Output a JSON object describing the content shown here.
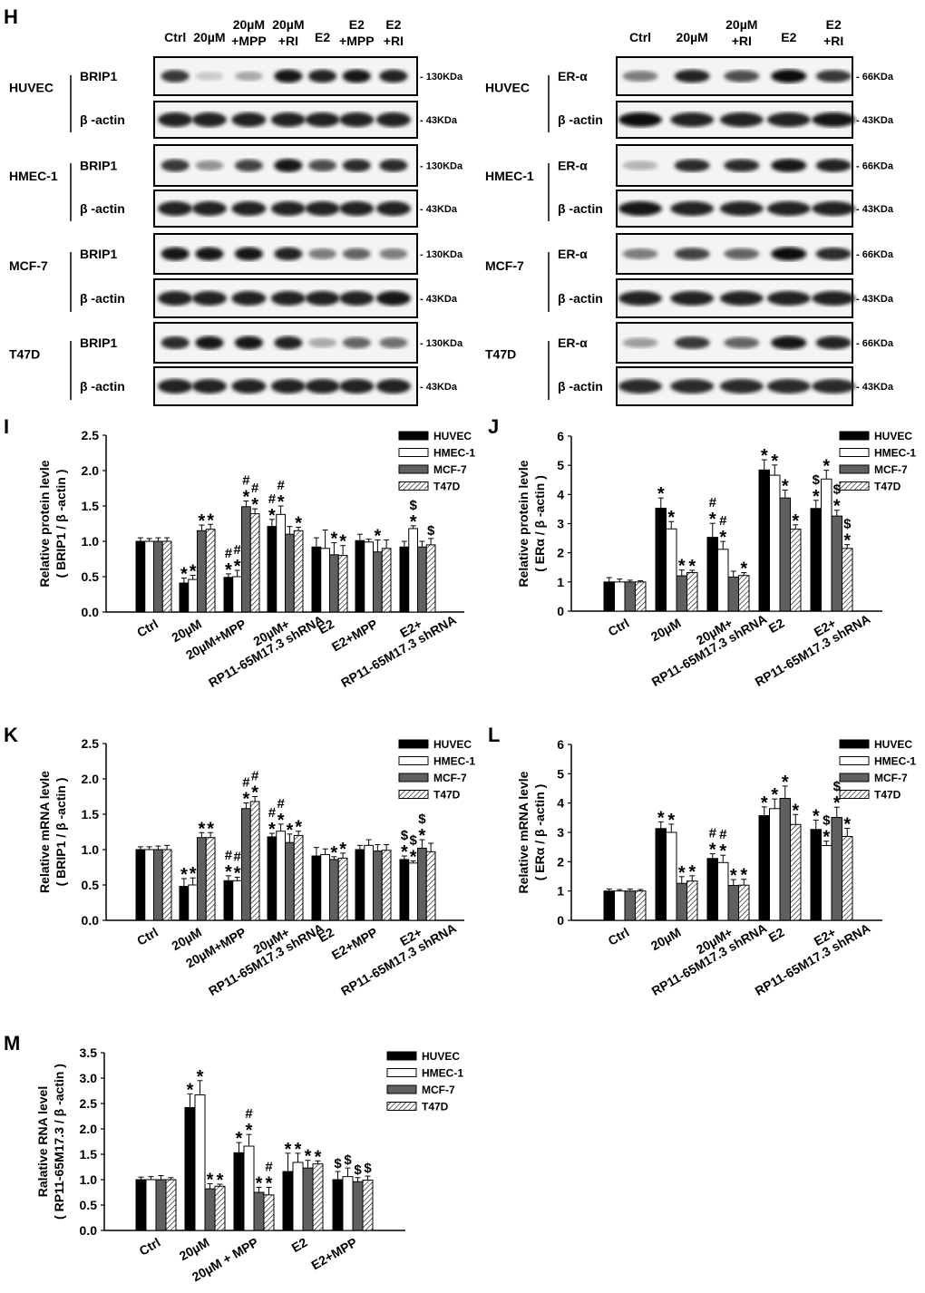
{
  "panel_letters": {
    "blots": "H",
    "i": "I",
    "j": "J",
    "k": "K",
    "l": "L",
    "m": "M"
  },
  "blots": {
    "left": {
      "lanes": [
        [
          "Ctrl"
        ],
        [
          "20µM"
        ],
        [
          "20µM",
          "+MPP"
        ],
        [
          "20µM",
          "+RI"
        ],
        [
          "E2"
        ],
        [
          "E2",
          "+MPP"
        ],
        [
          "E2",
          "+RI"
        ]
      ],
      "target": "BRIP1",
      "target_marker": "- 130KDa",
      "loading": "β -actin",
      "loading_marker": "- 43KDa",
      "cell_lines": [
        {
          "name": "HUVEC",
          "target_intensity": [
            0.8,
            0.15,
            0.3,
            0.95,
            0.9,
            0.95,
            0.9
          ],
          "loading_intensity": [
            0.9,
            0.9,
            0.9,
            0.9,
            0.9,
            0.9,
            0.9
          ]
        },
        {
          "name": "HMEC-1",
          "target_intensity": [
            0.8,
            0.4,
            0.75,
            0.95,
            0.7,
            0.85,
            0.85
          ],
          "loading_intensity": [
            0.9,
            0.9,
            0.9,
            0.9,
            0.9,
            0.9,
            0.9
          ]
        },
        {
          "name": "MCF-7",
          "target_intensity": [
            0.95,
            0.95,
            0.95,
            0.9,
            0.5,
            0.6,
            0.5
          ],
          "loading_intensity": [
            0.9,
            0.9,
            0.9,
            0.9,
            0.9,
            0.9,
            0.95
          ]
        },
        {
          "name": "T47D",
          "target_intensity": [
            0.85,
            0.95,
            0.95,
            0.9,
            0.3,
            0.6,
            0.55
          ],
          "loading_intensity": [
            0.9,
            0.9,
            0.9,
            0.9,
            0.9,
            0.9,
            0.9
          ]
        }
      ]
    },
    "right": {
      "lanes": [
        [
          "Ctrl"
        ],
        [
          "20µM"
        ],
        [
          "20µM",
          "+RI"
        ],
        [
          "E2"
        ],
        [
          "E2",
          "+RI"
        ]
      ],
      "target": "ER-α",
      "target_marker": "- 66KDa",
      "loading": "β -actin",
      "loading_marker": "- 43KDa",
      "cell_lines": [
        {
          "name": "HUVEC",
          "target_intensity": [
            0.5,
            0.9,
            0.7,
            1.0,
            0.8
          ],
          "loading_intensity": [
            1.0,
            0.9,
            0.9,
            0.9,
            0.95
          ]
        },
        {
          "name": "HMEC-1",
          "target_intensity": [
            0.25,
            0.85,
            0.85,
            0.95,
            0.9
          ],
          "loading_intensity": [
            0.95,
            0.9,
            0.9,
            0.9,
            0.9
          ]
        },
        {
          "name": "MCF-7",
          "target_intensity": [
            0.5,
            0.75,
            0.6,
            1.0,
            0.85
          ],
          "loading_intensity": [
            0.9,
            0.9,
            0.9,
            0.9,
            0.9
          ]
        },
        {
          "name": "T47D",
          "target_intensity": [
            0.35,
            0.8,
            0.6,
            0.95,
            0.9
          ],
          "loading_intensity": [
            0.85,
            0.85,
            0.85,
            0.85,
            0.85
          ]
        }
      ]
    }
  },
  "series_style": {
    "HUVEC": "#000000",
    "HMEC-1": "#ffffff",
    "MCF-7": "#606060",
    "T47D": "hatched"
  },
  "chart_data": [
    {
      "id": "I",
      "type": "bar",
      "ylabel": [
        "Relative protein levle",
        "( BRIP1 / β -actin )"
      ],
      "ylim": [
        0,
        2.5
      ],
      "yticks": [
        "0.0",
        "0.5",
        "1.0",
        "1.5",
        "2.0",
        "2.5"
      ],
      "legend": "top-right",
      "grid": false,
      "categories": [
        [
          "Ctrl"
        ],
        [
          "20µM"
        ],
        [
          "20µM+MPP"
        ],
        [
          "20µM+",
          "RP11-65M17.3 shRNA"
        ],
        [
          "E2"
        ],
        [
          "E2+MPP"
        ],
        [
          "E2+",
          "RP11-65M17.3 shRNA"
        ]
      ],
      "series": [
        {
          "name": "HUVEC",
          "values": [
            1.0,
            0.41,
            0.49,
            1.21,
            0.92,
            1.01,
            0.92
          ],
          "errors": [
            0.05,
            0.07,
            0.05,
            0.1,
            0.13,
            0.09,
            0.08
          ],
          "annotations": [
            "",
            "*",
            "#*",
            "#*",
            "",
            "",
            ""
          ]
        },
        {
          "name": "HMEC-1",
          "values": [
            1.0,
            0.46,
            0.5,
            1.38,
            0.9,
            0.99,
            1.18
          ],
          "errors": [
            0.04,
            0.06,
            0.09,
            0.12,
            0.26,
            0.04,
            0.04
          ],
          "annotations": [
            "",
            "*",
            "#*",
            "#*",
            "",
            "",
            "$*"
          ]
        },
        {
          "name": "MCF-7",
          "values": [
            1.0,
            1.15,
            1.49,
            1.1,
            0.81,
            0.85,
            0.92
          ],
          "errors": [
            0.05,
            0.08,
            0.08,
            0.11,
            0.17,
            0.17,
            0.08
          ],
          "annotations": [
            "",
            "*",
            "#*",
            "",
            "*",
            "*",
            ""
          ]
        },
        {
          "name": "T47D",
          "values": [
            1.0,
            1.17,
            1.39,
            1.15,
            0.8,
            0.9,
            0.95
          ],
          "errors": [
            0.05,
            0.07,
            0.07,
            0.05,
            0.14,
            0.12,
            0.09
          ],
          "annotations": [
            "",
            "*",
            "#*",
            "*",
            "*",
            "",
            "$"
          ]
        }
      ]
    },
    {
      "id": "J",
      "type": "bar",
      "ylabel": [
        "Relative protein levle",
        "( ERα  / β -actin )"
      ],
      "ylim": [
        0,
        6
      ],
      "yticks": [
        "0",
        "1",
        "2",
        "3",
        "4",
        "5",
        "6"
      ],
      "legend": "top-right",
      "grid": false,
      "categories": [
        [
          "Ctrl"
        ],
        [
          "20µM"
        ],
        [
          "20µM+",
          "RP11-65M17.3 shRNA"
        ],
        [
          "E2"
        ],
        [
          "E2+",
          "RP11-65M17.3 shRNA"
        ]
      ],
      "series": [
        {
          "name": "HUVEC",
          "values": [
            1.0,
            3.53,
            2.53,
            4.84,
            3.52
          ],
          "errors": [
            0.15,
            0.35,
            0.48,
            0.35,
            0.28
          ],
          "annotations": [
            "",
            "*",
            "#*",
            "*",
            "$*"
          ]
        },
        {
          "name": "HMEC-1",
          "values": [
            1.0,
            2.82,
            2.12,
            4.66,
            4.53
          ],
          "errors": [
            0.1,
            0.25,
            0.27,
            0.35,
            0.3
          ],
          "annotations": [
            "",
            "*",
            "#*",
            "*",
            "*"
          ]
        },
        {
          "name": "MCF-7",
          "values": [
            1.0,
            1.21,
            1.17,
            3.88,
            3.26
          ],
          "errors": [
            0.06,
            0.2,
            0.2,
            0.27,
            0.2
          ],
          "annotations": [
            "",
            "*",
            "",
            "*",
            "$*"
          ]
        },
        {
          "name": "T47D",
          "values": [
            1.0,
            1.32,
            1.22,
            2.81,
            2.15
          ],
          "errors": [
            0.04,
            0.08,
            0.1,
            0.15,
            0.13
          ],
          "annotations": [
            "",
            "*",
            "*",
            "*",
            "$*"
          ]
        }
      ]
    },
    {
      "id": "K",
      "type": "bar",
      "ylabel": [
        "Relative mRNA levle",
        "( BRIP1 / β -actin )"
      ],
      "ylim": [
        0,
        2.5
      ],
      "yticks": [
        "0.0",
        "0.5",
        "1.0",
        "1.5",
        "2.0",
        "2.5"
      ],
      "legend": "top-right",
      "grid": false,
      "categories": [
        [
          "Ctrl"
        ],
        [
          "20µM"
        ],
        [
          "20µM+MPP"
        ],
        [
          "20µM+",
          "RP11-65M17.3 shRNA"
        ],
        [
          "E2"
        ],
        [
          "E2+MPP"
        ],
        [
          "E2+",
          "RP11-65M17.3 shRNA"
        ]
      ],
      "series": [
        {
          "name": "HUVEC",
          "values": [
            1.0,
            0.48,
            0.56,
            1.18,
            0.91,
            1.0,
            0.86
          ],
          "errors": [
            0.04,
            0.11,
            0.07,
            0.05,
            0.12,
            0.06,
            0.05
          ],
          "annotations": [
            "",
            "*",
            "#*",
            "#*",
            "",
            "",
            "$*"
          ]
        },
        {
          "name": "HMEC-1",
          "values": [
            1.0,
            0.5,
            0.56,
            1.26,
            0.93,
            1.06,
            0.81
          ],
          "errors": [
            0.04,
            0.1,
            0.05,
            0.1,
            0.08,
            0.08,
            0.03
          ],
          "annotations": [
            "",
            "*",
            "#*",
            "#*",
            "",
            "",
            "$*"
          ]
        },
        {
          "name": "MCF-7",
          "values": [
            1.0,
            1.17,
            1.58,
            1.1,
            0.86,
            0.98,
            1.02
          ],
          "errors": [
            0.05,
            0.07,
            0.08,
            0.12,
            0.04,
            0.09,
            0.12
          ],
          "annotations": [
            "",
            "*",
            "#*",
            "*",
            "*",
            "",
            "$*"
          ]
        },
        {
          "name": "T47D",
          "values": [
            1.0,
            1.17,
            1.68,
            1.2,
            0.88,
            0.99,
            0.97
          ],
          "errors": [
            0.06,
            0.07,
            0.07,
            0.06,
            0.07,
            0.08,
            0.12
          ],
          "annotations": [
            "",
            "*",
            "#*",
            "*",
            "*",
            "",
            ""
          ]
        }
      ]
    },
    {
      "id": "L",
      "type": "bar",
      "ylabel": [
        "Relative mRNA levle",
        "( ERα / β -actin )"
      ],
      "ylim": [
        0,
        6
      ],
      "yticks": [
        "0",
        "1",
        "2",
        "3",
        "4",
        "5",
        "6"
      ],
      "legend": "top-right",
      "grid": false,
      "categories": [
        [
          "Ctrl"
        ],
        [
          "20µM"
        ],
        [
          "20µM+",
          "RP11-65M17.3 shRNA"
        ],
        [
          "E2"
        ],
        [
          "E2+",
          "RP11-65M17.3 shRNA"
        ]
      ],
      "series": [
        {
          "name": "HUVEC",
          "values": [
            1.0,
            3.13,
            2.11,
            3.57,
            3.1
          ],
          "errors": [
            0.07,
            0.23,
            0.16,
            0.3,
            0.32
          ],
          "annotations": [
            "",
            "*",
            "#*",
            "*",
            "*"
          ]
        },
        {
          "name": "HMEC-1",
          "values": [
            1.0,
            3.0,
            1.97,
            3.81,
            2.55
          ],
          "errors": [
            0.05,
            0.28,
            0.25,
            0.33,
            0.15
          ],
          "annotations": [
            "",
            "*",
            "#*",
            "*",
            "$*"
          ]
        },
        {
          "name": "MCF-7",
          "values": [
            1.0,
            1.26,
            1.19,
            4.16,
            3.51
          ],
          "errors": [
            0.07,
            0.23,
            0.2,
            0.42,
            0.35
          ],
          "annotations": [
            "",
            "*",
            "*",
            "*",
            "$*"
          ]
        },
        {
          "name": "T47D",
          "values": [
            1.0,
            1.34,
            1.2,
            3.27,
            2.86
          ],
          "errors": [
            0.05,
            0.18,
            0.2,
            0.34,
            0.28
          ],
          "annotations": [
            "",
            "*",
            "*",
            "*",
            "*"
          ]
        }
      ]
    },
    {
      "id": "M",
      "type": "bar",
      "ylabel": [
        "Ralative RNA level",
        "( RP11-65M17.3 / β -actin )"
      ],
      "ylim": [
        0,
        3.5
      ],
      "yticks": [
        "0.0",
        "0.5",
        "1.0",
        "1.5",
        "2.0",
        "2.5",
        "3.0",
        "3.5"
      ],
      "legend": "top-right",
      "grid": false,
      "categories": [
        [
          "Ctrl"
        ],
        [
          "20µM"
        ],
        [
          "20µM + MPP"
        ],
        [
          "E2"
        ],
        [
          "E2+MPP"
        ]
      ],
      "series": [
        {
          "name": "HUVEC",
          "values": [
            1.0,
            2.42,
            1.53,
            1.16,
            1.0
          ],
          "errors": [
            0.05,
            0.27,
            0.2,
            0.36,
            0.16
          ],
          "annotations": [
            "",
            "*",
            "*",
            "*",
            "$"
          ]
        },
        {
          "name": "HMEC-1",
          "values": [
            1.0,
            2.67,
            1.66,
            1.34,
            1.06
          ],
          "errors": [
            0.06,
            0.28,
            0.23,
            0.18,
            0.17
          ],
          "annotations": [
            "",
            "*",
            "#*",
            "*",
            "$"
          ]
        },
        {
          "name": "MCF-7",
          "values": [
            1.0,
            0.82,
            0.75,
            1.23,
            0.96
          ],
          "errors": [
            0.08,
            0.1,
            0.1,
            0.15,
            0.08
          ],
          "annotations": [
            "",
            "*",
            "*",
            "*",
            "$"
          ]
        },
        {
          "name": "T47D",
          "values": [
            1.0,
            0.87,
            0.7,
            1.31,
            0.99
          ],
          "errors": [
            0.04,
            0.04,
            0.15,
            0.06,
            0.08
          ],
          "annotations": [
            "",
            "*",
            "#*",
            "*",
            "$"
          ]
        }
      ]
    }
  ]
}
